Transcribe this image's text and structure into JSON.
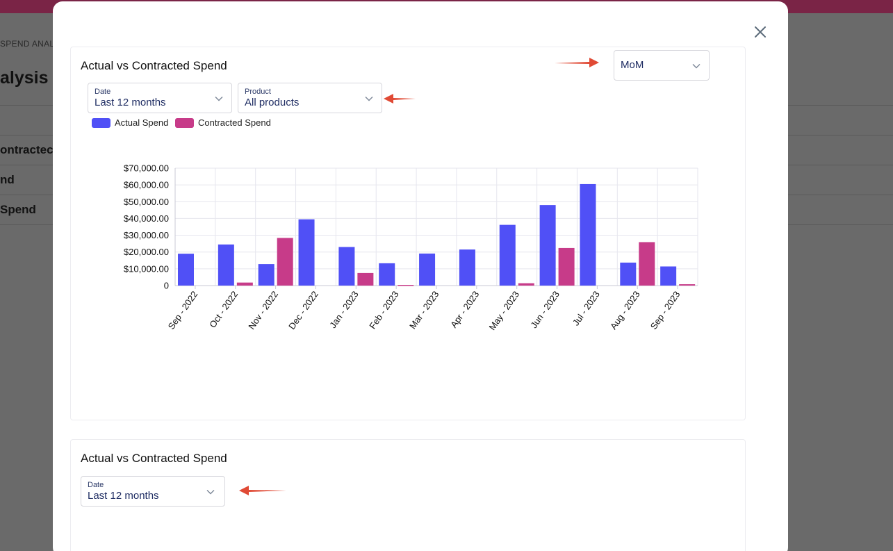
{
  "background": {
    "breadcrumb": "SPEND ANAL",
    "title": "alysis",
    "rows": [
      "ontractec",
      "nd",
      " Spend"
    ]
  },
  "modal": {
    "close_icon": "close-icon",
    "top_card": {
      "title": "Actual vs Contracted Spend",
      "period_select": {
        "value": "MoM"
      },
      "date_select": {
        "label": "Date",
        "value": "Last 12 months"
      },
      "product_select": {
        "label": "Product",
        "value": "All products"
      },
      "legend": [
        {
          "name": "Actual Spend",
          "color": "#5050f6"
        },
        {
          "name": "Contracted Spend",
          "color": "#c73b89"
        }
      ]
    },
    "bottom_card": {
      "title": "Actual vs Contracted Spend",
      "date_select": {
        "label": "Date",
        "value": "Last 12 months"
      }
    }
  },
  "colors": {
    "arrow": "#e04a35",
    "actual": "#5050f6",
    "contracted": "#c73b89"
  },
  "chart_data": {
    "type": "bar",
    "categories": [
      "Sep - 2022",
      "Oct - 2022",
      "Nov - 2022",
      "Dec - 2022",
      "Jan - 2023",
      "Feb - 2023",
      "Mar - 2023",
      "Apr - 2023",
      "May - 2023",
      "Jun - 2023",
      "Jul - 2023",
      "Aug - 2023",
      "Sep - 2023"
    ],
    "series": [
      {
        "name": "Actual Spend",
        "values": [
          19000,
          24500,
          12800,
          39500,
          23000,
          13300,
          19100,
          21500,
          36200,
          48000,
          60500,
          13700,
          11400
        ]
      },
      {
        "name": "Contracted Spend",
        "values": [
          0,
          1800,
          28400,
          0,
          7500,
          400,
          0,
          0,
          1400,
          22400,
          0,
          25900,
          800
        ]
      }
    ],
    "y_ticks": [
      "0",
      "$10,000.00",
      "$20,000.00",
      "$30,000.00",
      "$40,000.00",
      "$50,000.00",
      "$60,000.00",
      "$70,000.00"
    ],
    "ylim": [
      0,
      70000
    ],
    "grid": true,
    "legend_position": "top-left"
  }
}
